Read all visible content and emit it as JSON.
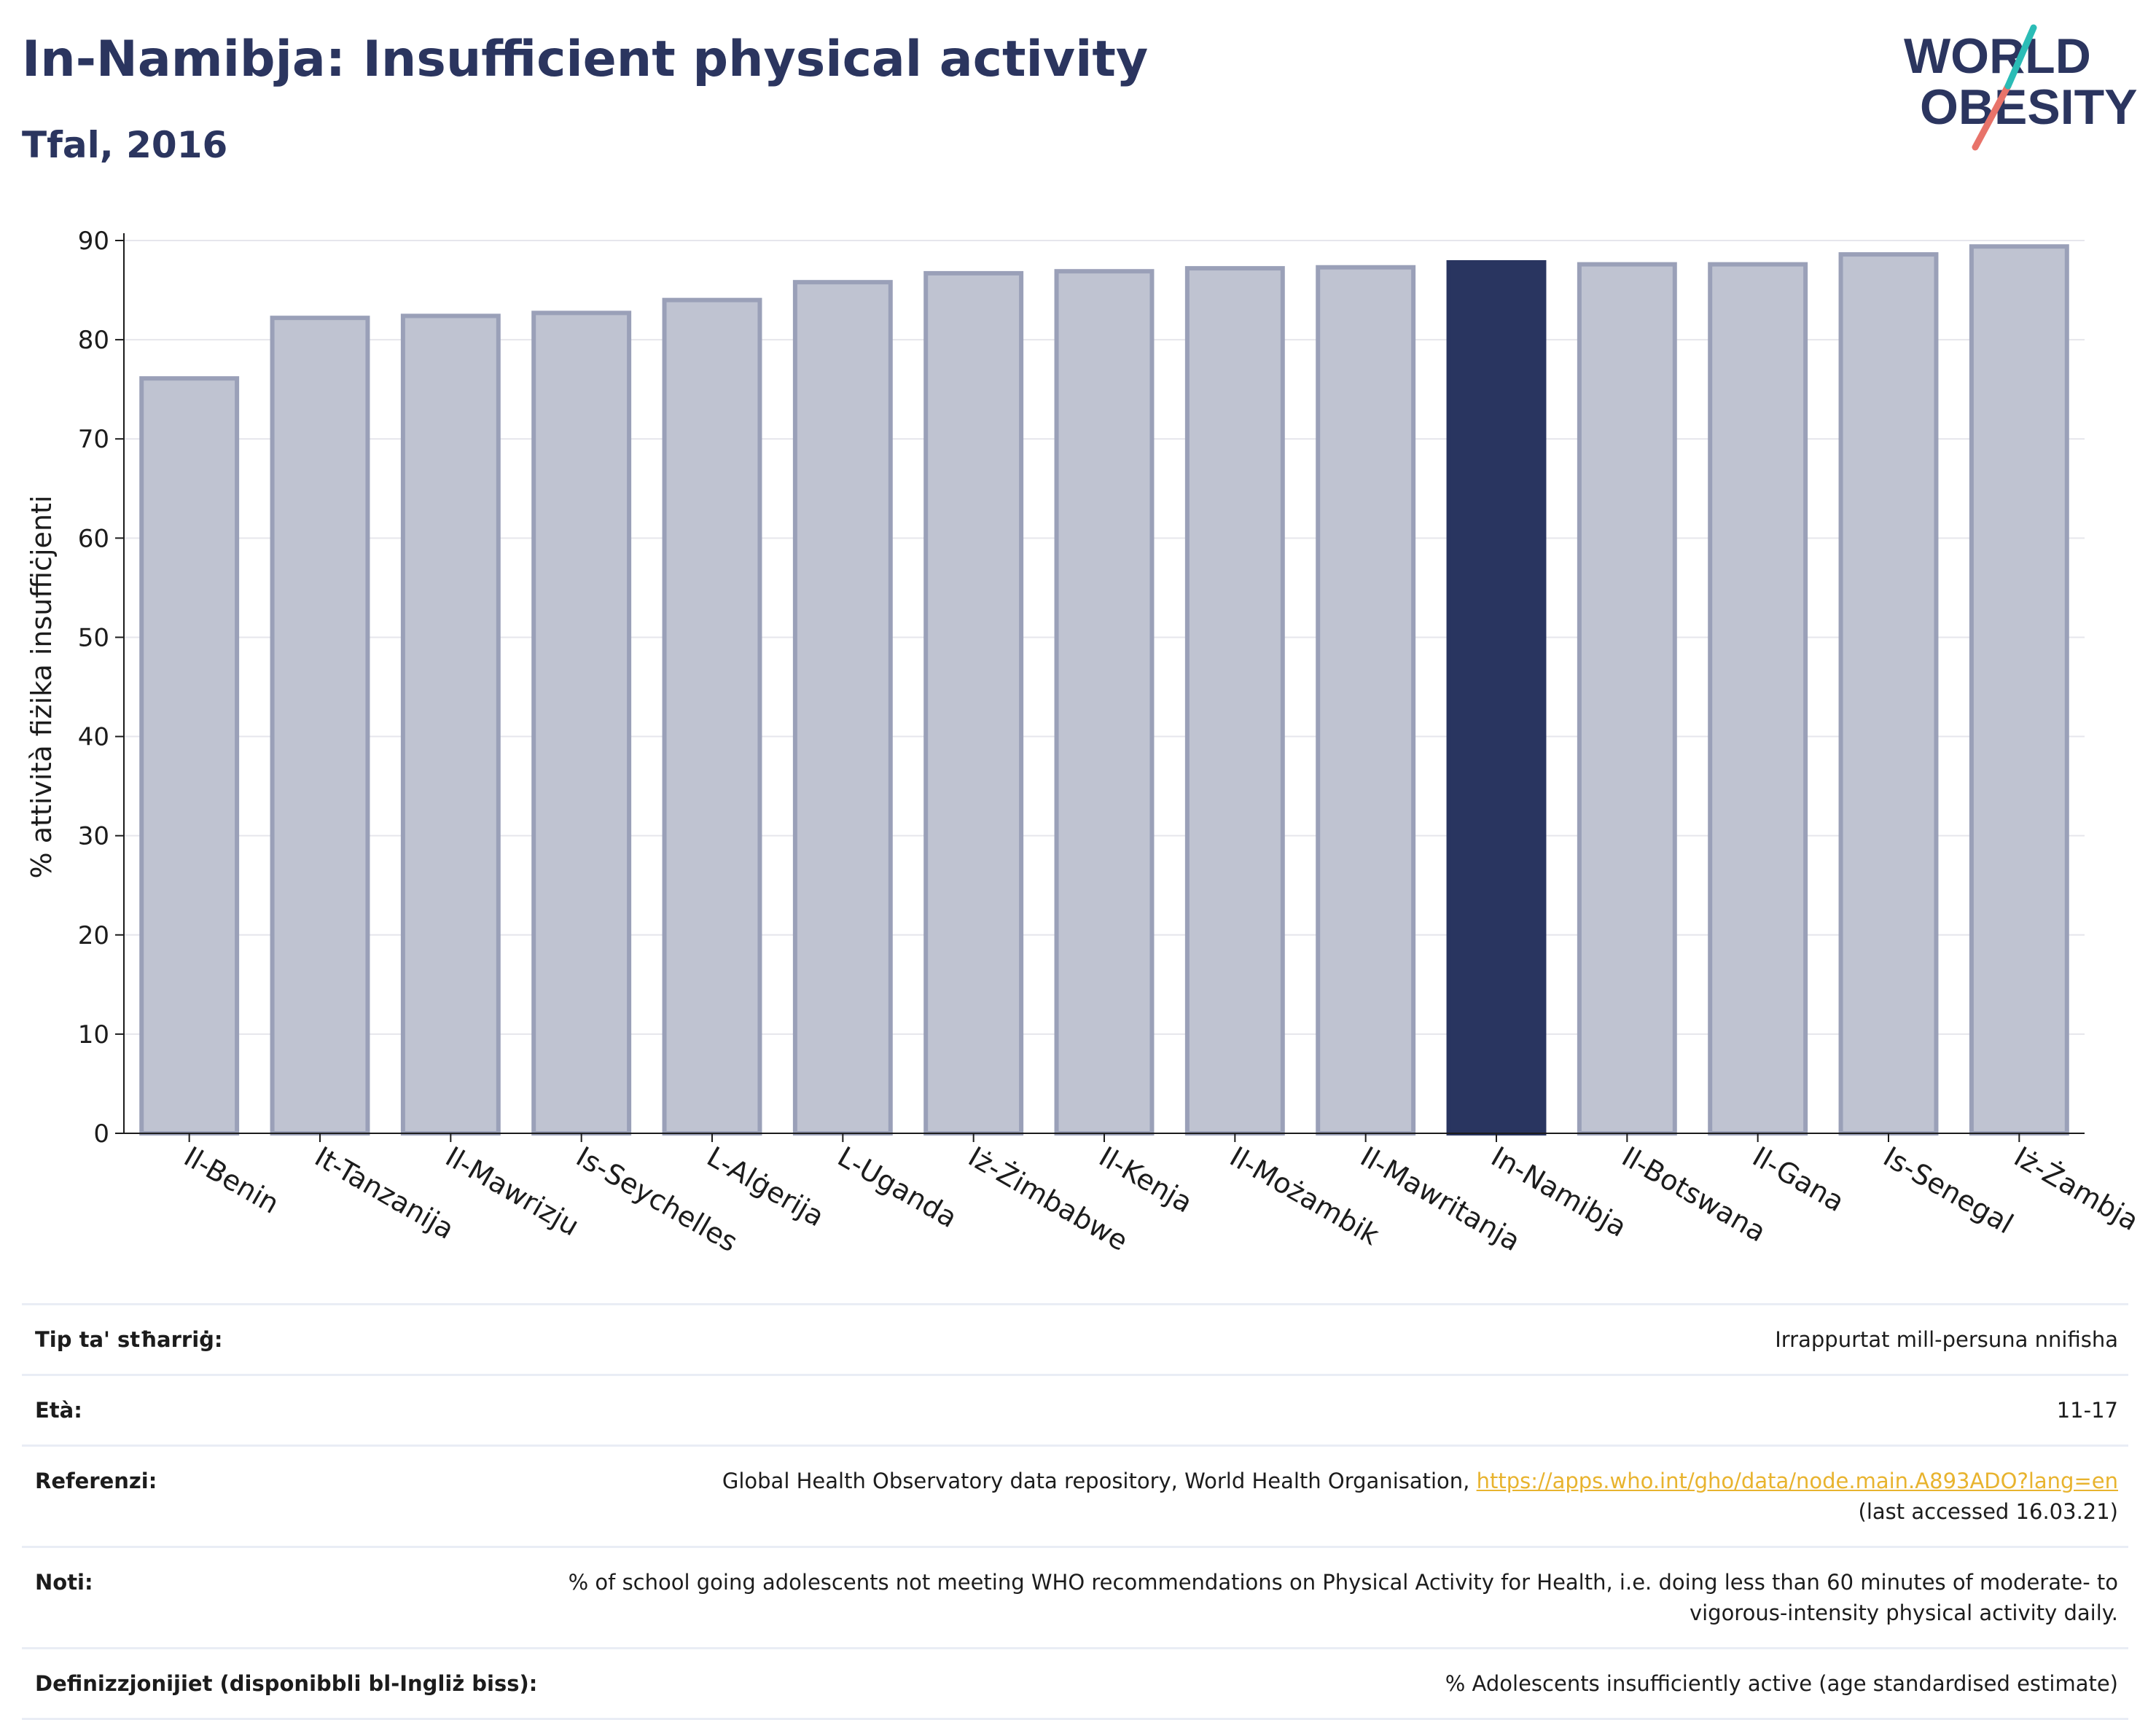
{
  "header": {
    "title": "In-Namibja: Insufficient physical activity",
    "subtitle": "Tfal, 2016"
  },
  "logo": {
    "line1": "WORLD",
    "line2": "OBESITY",
    "accent_teal": "#2bbcb6",
    "accent_coral": "#e8736a",
    "text_color": "#2b355f"
  },
  "chart_data": {
    "type": "bar",
    "categories": [
      "Il-Benin",
      "It-Tanzanija",
      "Il-Mawrizju",
      "Is-Seychelles",
      "L-Alġerija",
      "L-Uganda",
      "Iż-Żimbabwe",
      "Il-Kenja",
      "Il-Możambik",
      "Il-Mawritanja",
      "In-Namibja",
      "Il-Botswana",
      "Il-Gana",
      "Is-Senegal",
      "Iż-Żambja"
    ],
    "values": [
      76.1,
      82.2,
      82.4,
      82.7,
      84.0,
      85.8,
      86.7,
      86.9,
      87.2,
      87.3,
      87.8,
      87.6,
      87.6,
      88.6,
      89.4
    ],
    "highlight": "In-Namibja",
    "ylabel": "% attività fiżika insuffiċjenti",
    "xlabel": "",
    "ylim": [
      0,
      90
    ],
    "yticks": [
      0,
      10,
      20,
      30,
      40,
      50,
      60,
      70,
      80,
      90
    ],
    "grid": true,
    "colors": {
      "bar": "#bfc3d1",
      "bar_border": "#9aa0b8",
      "highlight": "#293560",
      "grid": "#e6e6ec"
    }
  },
  "meta": {
    "rows": [
      {
        "key": "Tip ta' stħarriġ:",
        "value": "Irrappurtat mill-persuna nnifisha"
      },
      {
        "key": "Età:",
        "value": "11-17"
      },
      {
        "key": "Referenzi:",
        "value": "Global Health Observatory data repository, World Health Organisation,",
        "link": "https://apps.who.int/gho/data/node.main.A893ADO?lang=en",
        "value2": "(last accessed 16.03.21)"
      },
      {
        "key": "Noti:",
        "value": "% of school going adolescents not meeting WHO recommendations on Physical Activity for Health, i.e. doing less than 60 minutes of moderate- to vigorous-intensity physical activity daily."
      },
      {
        "key": "Definizzjonijiet (disponibbli bl-Ingliż biss):",
        "value": "% Adolescents insufficiently active (age standardised estimate)"
      }
    ]
  }
}
